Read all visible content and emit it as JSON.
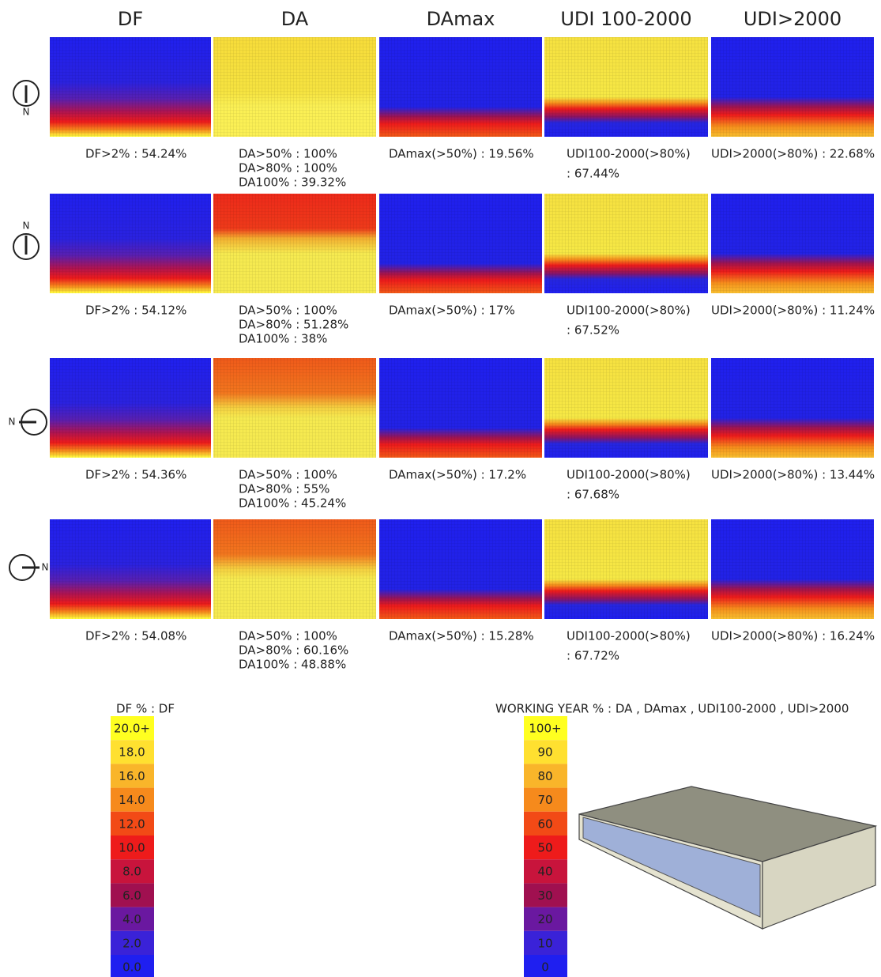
{
  "columns": [
    "DF",
    "DA",
    "DAmax",
    "UDI 100-2000",
    "UDI>2000"
  ],
  "rows": [
    {
      "compass": "N",
      "cells": [
        [
          "DF>2% : 54.24%"
        ],
        [
          "DA>50% : 100%",
          "DA>80% : 100%",
          "DA100% : 39.32%"
        ],
        [
          "DAmax(>50%) : 19.56%"
        ],
        [
          "UDI100-2000(>80%)",
          ": 67.44%"
        ],
        [
          "UDI>2000(>80%) : 22.68%"
        ]
      ]
    },
    {
      "compass": "N",
      "cells": [
        [
          "DF>2% : 54.12%"
        ],
        [
          "DA>50% : 100%",
          "DA>80% : 51.28%",
          "DA100% : 38%"
        ],
        [
          "DAmax(>50%) : 17%"
        ],
        [
          "UDI100-2000(>80%)",
          ": 67.52%"
        ],
        [
          "UDI>2000(>80%) : 11.24%"
        ]
      ]
    },
    {
      "compass": "N",
      "cells": [
        [
          "DF>2% : 54.36%"
        ],
        [
          "DA>50% : 100%",
          "DA>80% : 55%",
          "DA100% : 45.24%"
        ],
        [
          "DAmax(>50%) : 17.2%"
        ],
        [
          "UDI100-2000(>80%)",
          ": 67.68%"
        ],
        [
          "UDI>2000(>80%) : 13.44%"
        ]
      ]
    },
    {
      "compass": "N",
      "cells": [
        [
          "DF>2% : 54.08%"
        ],
        [
          "DA>50% : 100%",
          "DA>80% : 60.16%",
          "DA100% : 48.88%"
        ],
        [
          "DAmax(>50%) : 15.28%"
        ],
        [
          "UDI100-2000(>80%)",
          ": 67.72%"
        ],
        [
          "UDI>2000(>80%) : 16.24%"
        ]
      ]
    }
  ],
  "legend_df": {
    "title": "DF % : DF",
    "labels": [
      "20.0+",
      "18.0",
      "16.0",
      "14.0",
      "12.0",
      "10.0",
      "8.0",
      "6.0",
      "4.0",
      "2.0",
      "0.0"
    ]
  },
  "legend_year": {
    "title": "WORKING YEAR % : DA , DAmax , UDI100-2000 , UDI>2000",
    "labels": [
      "100+",
      "90",
      "80",
      "70",
      "60",
      "50",
      "40",
      "30",
      "20",
      "10",
      "0"
    ]
  }
}
